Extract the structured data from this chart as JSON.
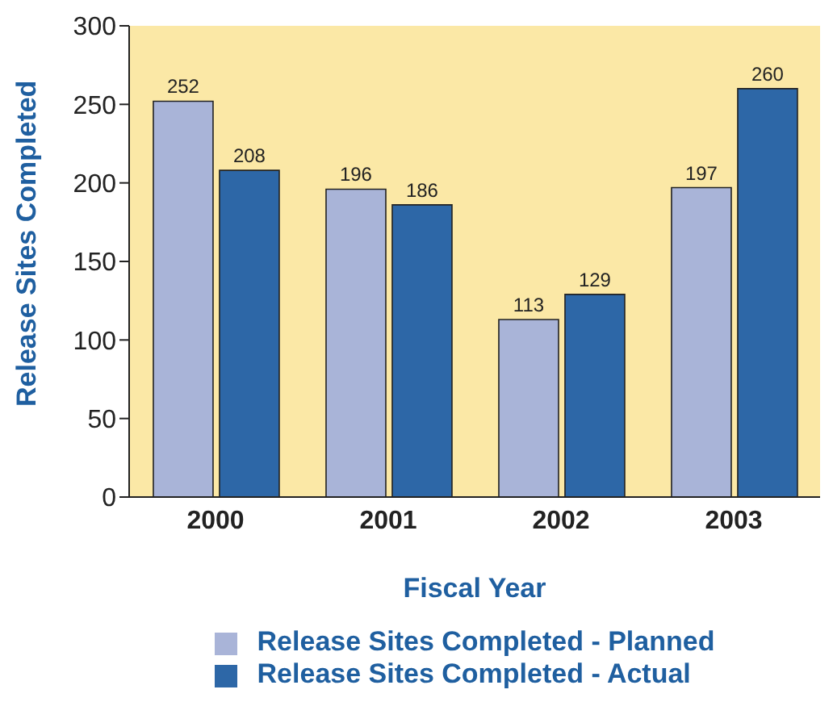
{
  "chart_data": {
    "type": "bar",
    "xlabel": "Fiscal Year",
    "ylabel": "Release Sites Completed",
    "categories": [
      "2000",
      "2001",
      "2002",
      "2003"
    ],
    "series": [
      {
        "name": "Release Sites Completed - Planned",
        "color": "#a9b4d8",
        "values": [
          252,
          196,
          113,
          197
        ]
      },
      {
        "name": "Release Sites Completed - Actual",
        "color": "#2d67a7",
        "values": [
          208,
          186,
          129,
          260
        ]
      }
    ],
    "ylim": [
      0,
      300
    ],
    "yticks": [
      0,
      50,
      100,
      150,
      200,
      250,
      300
    ],
    "grid": false,
    "legend": "bottom",
    "data_labels": true
  }
}
